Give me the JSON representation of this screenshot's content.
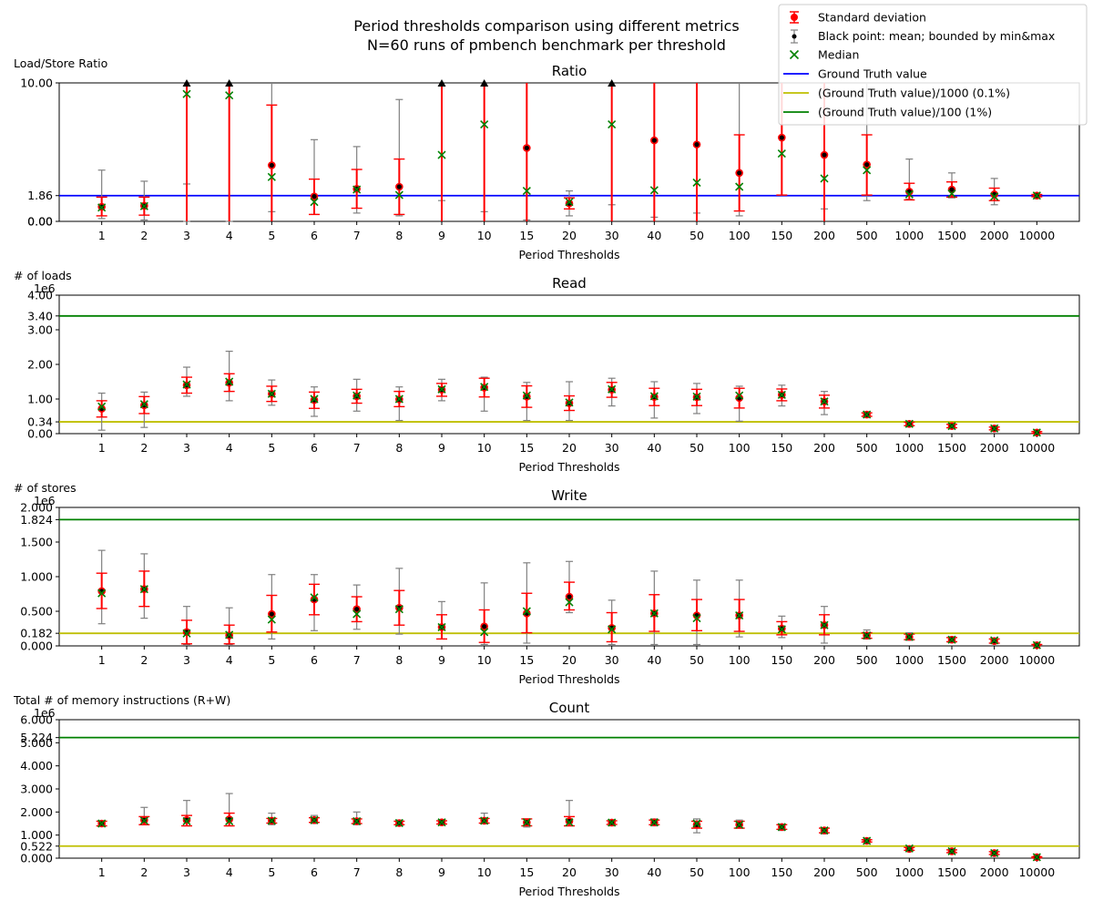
{
  "figure": {
    "suptitle_line1": "Period thresholds comparison using different metrics",
    "suptitle_line2": "N=60 runs of pmbench benchmark per threshold"
  },
  "legend": {
    "std": "Standard deviation",
    "mean": "Black point: mean; bounded by min&max",
    "median": "Median",
    "gt": "Ground Truth value",
    "gt1000": "(Ground Truth value)/1000 (0.1%)",
    "gt100": "(Ground Truth value)/100 (1%)"
  },
  "colors": {
    "std": "#ff0000",
    "minmax": "#808080",
    "mean": "#000000",
    "median": "#008000",
    "gt": "#0000ff",
    "gt1000": "#bfbf00",
    "gt100": "#008000"
  },
  "chart_data": [
    {
      "type": "errorbar",
      "title": "Ratio",
      "ylabel": "Load/Store Ratio",
      "xlabel": "Period Thresholds",
      "ylim": [
        0,
        10
      ],
      "yticks": [
        "0.00",
        "0.00",
        "1.86",
        "10.00"
      ],
      "ytick_values": [
        0,
        0,
        1.86,
        10
      ],
      "categories": [
        "1",
        "2",
        "3",
        "4",
        "5",
        "6",
        "7",
        "8",
        "9",
        "10",
        "15",
        "20",
        "30",
        "40",
        "50",
        "100",
        "150",
        "200",
        "500",
        "1000",
        "1500",
        "2000",
        "10000"
      ],
      "hlines": [
        {
          "key": "gt",
          "value": 1.86
        }
      ],
      "mean": [
        1.05,
        1.12,
        10,
        10,
        4.05,
        1.8,
        2.35,
        2.5,
        10,
        10,
        5.3,
        1.3,
        10,
        5.85,
        5.55,
        3.5,
        6.05,
        4.8,
        4.1,
        2.15,
        2.3,
        1.95,
        1.86
      ],
      "std_low": [
        0.4,
        0.45,
        0,
        0,
        0,
        0.5,
        0.95,
        0.5,
        0,
        0,
        0,
        0.9,
        0,
        0,
        0,
        0.75,
        1.9,
        0,
        1.9,
        1.55,
        1.75,
        1.5,
        1.78
      ],
      "std_high": [
        1.75,
        1.75,
        10,
        10,
        8.4,
        3.05,
        3.75,
        4.5,
        10,
        10,
        10,
        1.7,
        10,
        10,
        10,
        6.25,
        10,
        10,
        6.25,
        2.75,
        2.85,
        2.4,
        1.94
      ],
      "min": [
        0.2,
        0.1,
        0,
        0,
        0.7,
        0.5,
        0.6,
        0.4,
        1.5,
        0.7,
        0.1,
        0.4,
        1.2,
        0.3,
        0.6,
        0.4,
        1.9,
        0.9,
        1.5,
        1.6,
        1.7,
        1.2,
        1.8
      ],
      "max": [
        3.7,
        2.9,
        2.7,
        10,
        10,
        5.9,
        5.4,
        8.8,
        10,
        10,
        10,
        2.2,
        10,
        10,
        10,
        10,
        10,
        10,
        10,
        4.5,
        3.5,
        3.1,
        1.95
      ],
      "median": [
        1.0,
        1.1,
        9.2,
        9.1,
        3.2,
        1.4,
        2.3,
        1.9,
        4.8,
        7.0,
        2.2,
        1.4,
        7.0,
        2.25,
        2.8,
        2.5,
        4.9,
        3.1,
        3.7,
        1.95,
        2.0,
        1.8,
        1.86
      ],
      "overflow_up": [
        false,
        false,
        true,
        true,
        false,
        false,
        false,
        false,
        true,
        true,
        false,
        false,
        true,
        false,
        false,
        false,
        false,
        false,
        false,
        false,
        false,
        false,
        false
      ]
    },
    {
      "type": "errorbar",
      "title": "Read",
      "ylabel": "# of loads",
      "xlabel": "Period Thresholds",
      "offset_text": "1e6",
      "ylim": [
        0,
        4
      ],
      "yticks": [
        "0.00",
        "0.34",
        "1.00",
        "2.00",
        "3.00",
        "3.40",
        "4.00"
      ],
      "ytick_values": [
        0,
        0.34,
        1,
        2,
        3,
        3.4,
        4
      ],
      "categories": [
        "1",
        "2",
        "3",
        "4",
        "5",
        "6",
        "7",
        "8",
        "9",
        "10",
        "15",
        "20",
        "30",
        "40",
        "50",
        "100",
        "150",
        "200",
        "500",
        "1000",
        "1500",
        "2000",
        "10000"
      ],
      "hlines": [
        {
          "key": "gt100",
          "value": 3.4
        },
        {
          "key": "gt1000",
          "value": 0.34
        }
      ],
      "mean": [
        0.72,
        0.82,
        1.4,
        1.47,
        1.15,
        0.97,
        1.08,
        0.99,
        1.27,
        1.33,
        1.07,
        0.88,
        1.27,
        1.06,
        1.05,
        1.03,
        1.12,
        0.93,
        0.55,
        0.28,
        0.22,
        0.15,
        0.03
      ],
      "std_low": [
        0.48,
        0.58,
        1.17,
        1.22,
        0.93,
        0.73,
        0.88,
        0.78,
        1.08,
        1.06,
        0.76,
        0.67,
        1.05,
        0.81,
        0.81,
        0.74,
        0.95,
        0.74,
        0.5,
        0.23,
        0.17,
        0.11,
        0.01
      ],
      "std_high": [
        0.95,
        1.07,
        1.63,
        1.73,
        1.37,
        1.2,
        1.28,
        1.22,
        1.45,
        1.6,
        1.38,
        1.09,
        1.48,
        1.31,
        1.28,
        1.31,
        1.29,
        1.11,
        0.6,
        0.33,
        0.27,
        0.19,
        0.06
      ],
      "min": [
        0.1,
        0.18,
        1.08,
        0.95,
        0.82,
        0.5,
        0.65,
        0.38,
        0.95,
        0.65,
        0.38,
        0.38,
        0.8,
        0.45,
        0.58,
        0.36,
        0.8,
        0.55,
        0.48,
        0.22,
        0.16,
        0.1,
        0.01
      ],
      "max": [
        1.17,
        1.2,
        1.92,
        2.38,
        1.55,
        1.35,
        1.57,
        1.35,
        1.57,
        1.63,
        1.48,
        1.5,
        1.6,
        1.5,
        1.45,
        1.37,
        1.4,
        1.22,
        0.62,
        0.35,
        0.29,
        0.2,
        0.07
      ],
      "median": [
        0.78,
        0.85,
        1.42,
        1.5,
        1.15,
        1.0,
        1.1,
        1.0,
        1.28,
        1.35,
        1.1,
        0.9,
        1.28,
        1.08,
        1.07,
        1.1,
        1.12,
        0.93,
        0.55,
        0.28,
        0.22,
        0.15,
        0.03
      ]
    },
    {
      "type": "errorbar",
      "title": "Write",
      "ylabel": "# of stores",
      "xlabel": "Period Thresholds",
      "offset_text": "1e6",
      "ylim": [
        0,
        2
      ],
      "yticks": [
        "0.000",
        "0.182",
        "0.500",
        "1.000",
        "1.500",
        "1.824",
        "2.000"
      ],
      "ytick_values": [
        0,
        0.182,
        0.5,
        1,
        1.5,
        1.824,
        2
      ],
      "categories": [
        "1",
        "2",
        "3",
        "4",
        "5",
        "6",
        "7",
        "8",
        "9",
        "10",
        "15",
        "20",
        "30",
        "40",
        "50",
        "100",
        "150",
        "200",
        "500",
        "1000",
        "1500",
        "2000",
        "10000"
      ],
      "hlines": [
        {
          "key": "gt100",
          "value": 1.824
        },
        {
          "key": "gt1000",
          "value": 0.182
        }
      ],
      "mean": [
        0.79,
        0.82,
        0.2,
        0.15,
        0.46,
        0.67,
        0.53,
        0.55,
        0.27,
        0.28,
        0.47,
        0.71,
        0.26,
        0.47,
        0.44,
        0.44,
        0.25,
        0.3,
        0.15,
        0.13,
        0.09,
        0.07,
        0.01
      ],
      "std_low": [
        0.54,
        0.57,
        0.03,
        0.03,
        0.2,
        0.45,
        0.35,
        0.3,
        0.1,
        0.05,
        0.19,
        0.52,
        0.06,
        0.21,
        0.22,
        0.21,
        0.16,
        0.16,
        0.11,
        0.09,
        0.06,
        0.04,
        0.0
      ],
      "std_high": [
        1.05,
        1.08,
        0.37,
        0.3,
        0.73,
        0.89,
        0.71,
        0.8,
        0.45,
        0.52,
        0.76,
        0.92,
        0.48,
        0.74,
        0.67,
        0.67,
        0.35,
        0.45,
        0.19,
        0.17,
        0.12,
        0.1,
        0.02
      ],
      "min": [
        0.32,
        0.4,
        0.02,
        0.02,
        0.1,
        0.22,
        0.24,
        0.17,
        0.1,
        0.02,
        0.04,
        0.48,
        0.02,
        0.02,
        0.02,
        0.13,
        0.12,
        0.04,
        0.1,
        0.08,
        0.06,
        0.04,
        0.0
      ],
      "max": [
        1.38,
        1.33,
        0.57,
        0.55,
        1.03,
        1.03,
        0.88,
        1.12,
        0.64,
        0.91,
        1.2,
        1.22,
        0.66,
        1.08,
        0.95,
        0.95,
        0.43,
        0.57,
        0.23,
        0.19,
        0.13,
        0.11,
        0.02
      ],
      "median": [
        0.76,
        0.82,
        0.18,
        0.16,
        0.38,
        0.7,
        0.46,
        0.53,
        0.27,
        0.2,
        0.5,
        0.63,
        0.24,
        0.47,
        0.4,
        0.44,
        0.24,
        0.3,
        0.15,
        0.13,
        0.09,
        0.08,
        0.01
      ]
    },
    {
      "type": "errorbar",
      "title": "Count",
      "ylabel": "Total # of memory instructions (R+W)",
      "xlabel": "Period Thresholds",
      "offset_text": "1e6",
      "ylim": [
        0,
        6
      ],
      "yticks": [
        "0.000",
        "0.522",
        "1.000",
        "2.000",
        "3.000",
        "4.000",
        "5.000",
        "5.224",
        "6.000"
      ],
      "ytick_values": [
        0,
        0.522,
        1,
        2,
        3,
        4,
        5,
        5.224,
        6
      ],
      "categories": [
        "1",
        "2",
        "3",
        "4",
        "5",
        "6",
        "7",
        "8",
        "9",
        "10",
        "15",
        "20",
        "30",
        "40",
        "50",
        "100",
        "150",
        "200",
        "500",
        "1000",
        "1500",
        "2000",
        "10000"
      ],
      "hlines": [
        {
          "key": "gt100",
          "value": 5.224
        },
        {
          "key": "gt1000",
          "value": 0.522
        }
      ],
      "mean": [
        1.5,
        1.65,
        1.65,
        1.68,
        1.62,
        1.65,
        1.6,
        1.52,
        1.55,
        1.62,
        1.55,
        1.6,
        1.54,
        1.55,
        1.45,
        1.45,
        1.35,
        1.2,
        0.75,
        0.4,
        0.3,
        0.22,
        0.04
      ],
      "std_low": [
        1.4,
        1.45,
        1.4,
        1.4,
        1.52,
        1.55,
        1.5,
        1.45,
        1.48,
        1.52,
        1.4,
        1.4,
        1.46,
        1.45,
        1.3,
        1.3,
        1.25,
        1.1,
        0.7,
        0.34,
        0.24,
        0.16,
        0.02
      ],
      "std_high": [
        1.6,
        1.8,
        1.85,
        1.95,
        1.72,
        1.75,
        1.7,
        1.6,
        1.62,
        1.72,
        1.7,
        1.8,
        1.62,
        1.65,
        1.6,
        1.6,
        1.45,
        1.3,
        0.8,
        0.46,
        0.36,
        0.28,
        0.06
      ],
      "min": [
        1.4,
        1.45,
        1.4,
        1.4,
        1.45,
        1.5,
        1.45,
        1.4,
        1.45,
        1.5,
        1.35,
        1.4,
        1.4,
        1.4,
        1.1,
        1.3,
        1.2,
        1.05,
        0.7,
        0.3,
        0.22,
        0.12,
        0.01
      ],
      "max": [
        1.62,
        2.2,
        2.5,
        2.8,
        1.95,
        1.85,
        2.0,
        1.65,
        1.65,
        1.95,
        1.7,
        2.5,
        1.65,
        1.7,
        1.7,
        1.65,
        1.45,
        1.3,
        0.82,
        0.5,
        0.38,
        0.3,
        0.07
      ],
      "median": [
        1.5,
        1.62,
        1.6,
        1.6,
        1.62,
        1.65,
        1.6,
        1.52,
        1.55,
        1.62,
        1.55,
        1.55,
        1.54,
        1.55,
        1.5,
        1.45,
        1.35,
        1.2,
        0.75,
        0.42,
        0.3,
        0.22,
        0.04
      ]
    }
  ]
}
